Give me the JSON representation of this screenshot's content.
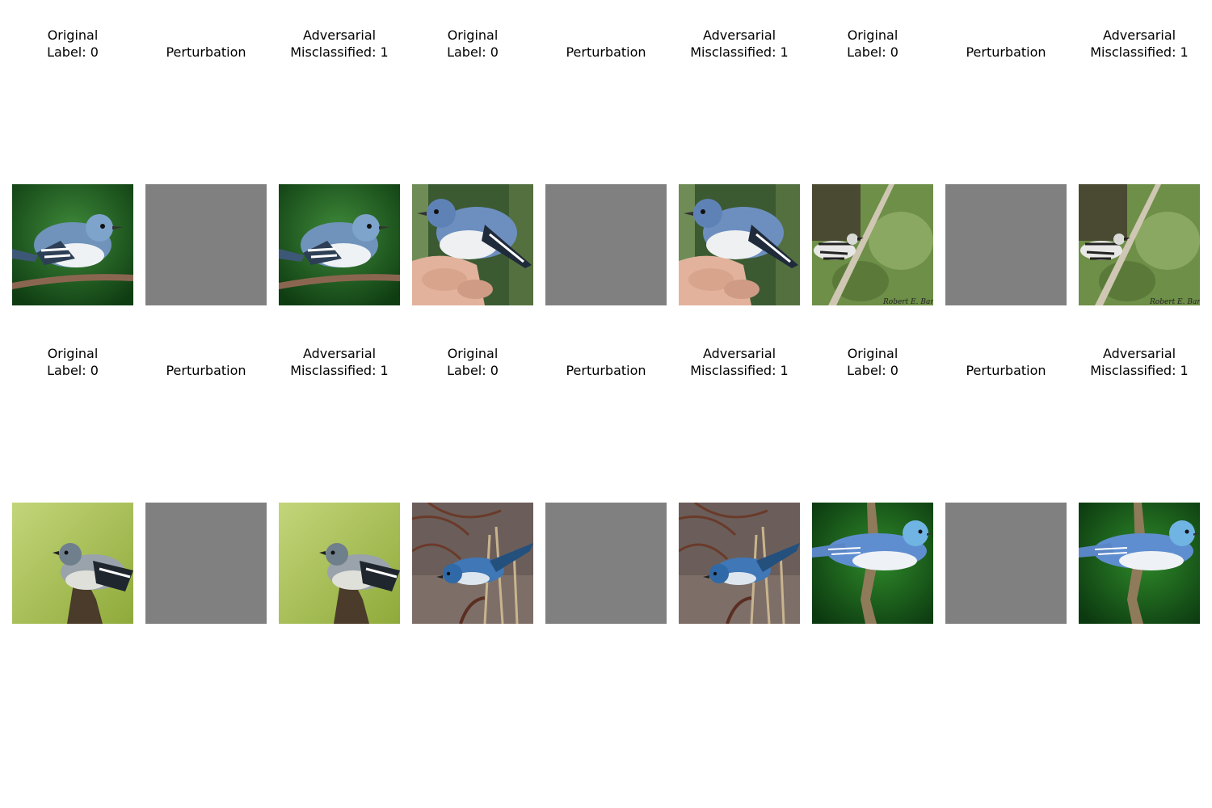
{
  "figure": {
    "rows": [
      {
        "groups": [
          {
            "original": {
              "line1": "Original",
              "line2": "Label: 0",
              "image": "bird-photo-1"
            },
            "perturbation": {
              "line1": "Perturbation",
              "color": "#808080"
            },
            "adversarial": {
              "line1": "Adversarial",
              "line2": "Misclassified: 1",
              "image": "bird-photo-1"
            }
          },
          {
            "original": {
              "line1": "Original",
              "line2": "Label: 0",
              "image": "bird-photo-2"
            },
            "perturbation": {
              "line1": "Perturbation",
              "color": "#808080"
            },
            "adversarial": {
              "line1": "Adversarial",
              "line2": "Misclassified: 1",
              "image": "bird-photo-2"
            }
          },
          {
            "original": {
              "line1": "Original",
              "line2": "Label: 0",
              "image": "bird-photo-3",
              "watermark": "Robert E. Barber"
            },
            "perturbation": {
              "line1": "Perturbation",
              "color": "#808080"
            },
            "adversarial": {
              "line1": "Adversarial",
              "line2": "Misclassified: 1",
              "image": "bird-photo-3",
              "watermark": "Robert E. Barber"
            }
          }
        ]
      },
      {
        "groups": [
          {
            "original": {
              "line1": "Original",
              "line2": "Label: 0",
              "image": "bird-photo-4"
            },
            "perturbation": {
              "line1": "Perturbation",
              "color": "#808080"
            },
            "adversarial": {
              "line1": "Adversarial",
              "line2": "Misclassified: 1",
              "image": "bird-photo-4"
            }
          },
          {
            "original": {
              "line1": "Original",
              "line2": "Label: 0",
              "image": "bird-photo-5"
            },
            "perturbation": {
              "line1": "Perturbation",
              "color": "#808080"
            },
            "adversarial": {
              "line1": "Adversarial",
              "line2": "Misclassified: 1",
              "image": "bird-photo-5"
            }
          },
          {
            "original": {
              "line1": "Original",
              "line2": "Label: 0",
              "image": "bird-photo-6"
            },
            "perturbation": {
              "line1": "Perturbation",
              "color": "#808080"
            },
            "adversarial": {
              "line1": "Adversarial",
              "line2": "Misclassified: 1",
              "image": "bird-photo-6"
            }
          }
        ]
      }
    ]
  }
}
